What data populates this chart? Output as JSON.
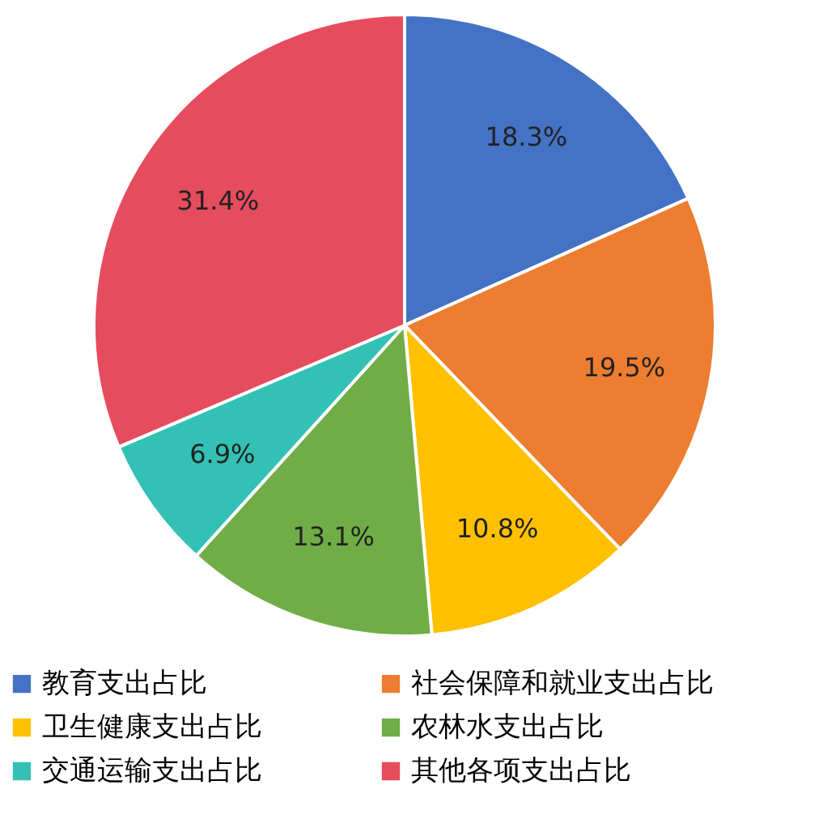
{
  "chart_data": {
    "type": "pie",
    "categories": [
      "教育支出占比",
      "社会保障和就业支出占比",
      "卫生健康支出占比",
      "农林水支出占比",
      "交通运输支出占比",
      "其他各项支出占比"
    ],
    "values": [
      18.3,
      19.5,
      10.8,
      13.1,
      6.9,
      31.4
    ],
    "colors": [
      "#4472c4",
      "#ed7d31",
      "#ffc000",
      "#70ad47",
      "#33c1b5",
      "#e54c5e"
    ],
    "value_labels": [
      "18.3%",
      "19.5%",
      "10.8%",
      "13.1%",
      "6.9%",
      "31.4%"
    ],
    "legend": "bottom"
  }
}
